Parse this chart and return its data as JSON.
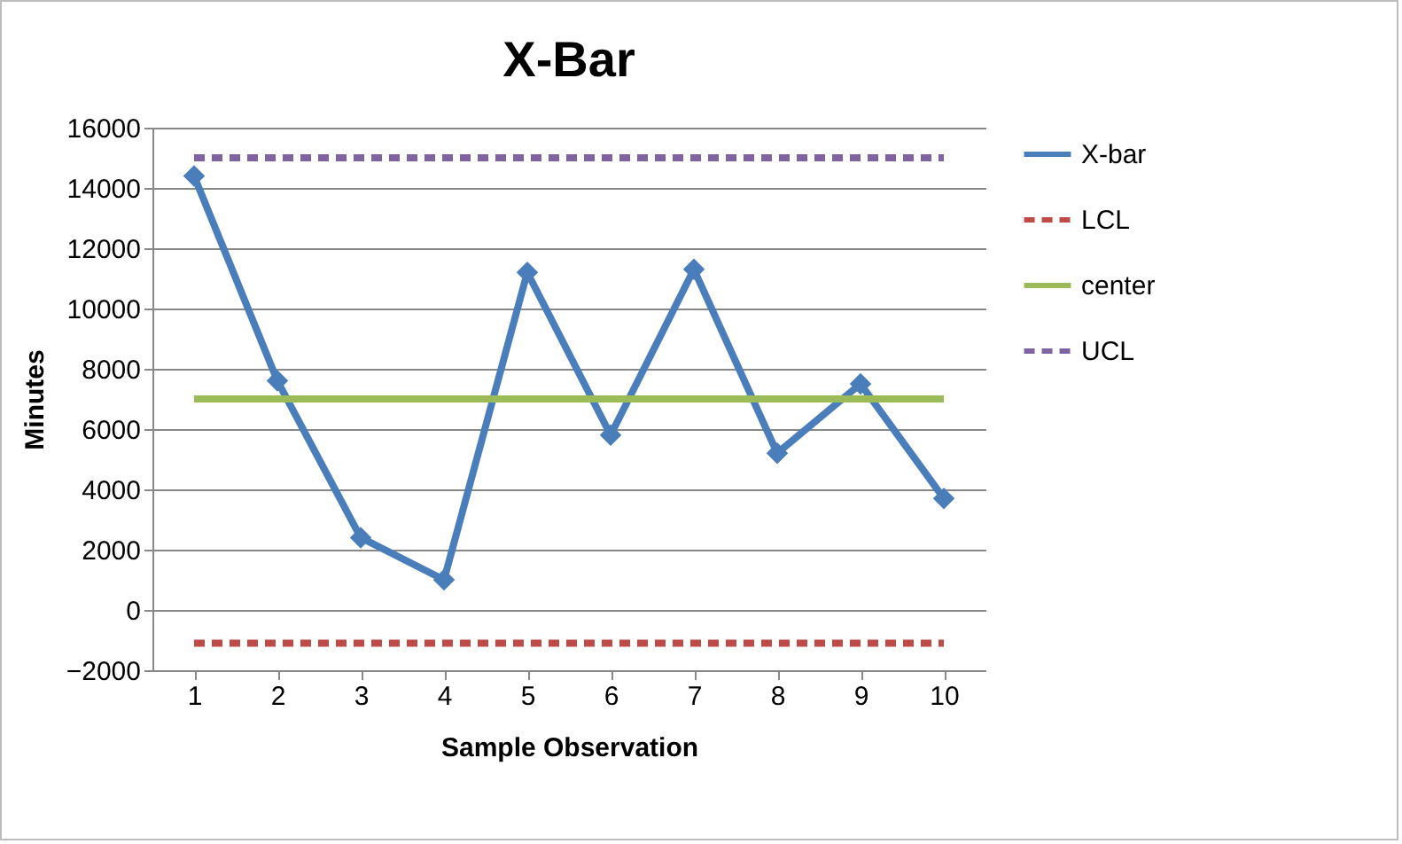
{
  "chart_data": {
    "type": "line",
    "title": "X-Bar",
    "xlabel": "Sample Observation",
    "ylabel": "Minutes",
    "categories": [
      "1",
      "2",
      "3",
      "4",
      "5",
      "6",
      "7",
      "8",
      "9",
      "10"
    ],
    "series": [
      {
        "name": "X-bar",
        "color": "#4a7ebb",
        "marker": "diamond",
        "line_style": "solid",
        "values": [
          14400,
          7600,
          2400,
          1000,
          11200,
          5800,
          11300,
          5200,
          7500,
          3700
        ]
      },
      {
        "name": "LCL",
        "color": "#be4b48",
        "marker": "none",
        "line_style": "dashed",
        "values": [
          -1100,
          -1100,
          -1100,
          -1100,
          -1100,
          -1100,
          -1100,
          -1100,
          -1100,
          -1100
        ]
      },
      {
        "name": "center",
        "color": "#9bbb59",
        "marker": "none",
        "line_style": "solid",
        "values": [
          7000,
          7000,
          7000,
          7000,
          7000,
          7000,
          7000,
          7000,
          7000,
          7000
        ]
      },
      {
        "name": "UCL",
        "color": "#8064a2",
        "marker": "none",
        "line_style": "dashed",
        "values": [
          15000,
          15000,
          15000,
          15000,
          15000,
          15000,
          15000,
          15000,
          15000,
          15000
        ]
      }
    ],
    "ylim": [
      -2000,
      16000
    ],
    "yticks": [
      -2000,
      0,
      2000,
      4000,
      6000,
      8000,
      10000,
      12000,
      14000,
      16000
    ],
    "grid": "y",
    "legend": "right"
  }
}
